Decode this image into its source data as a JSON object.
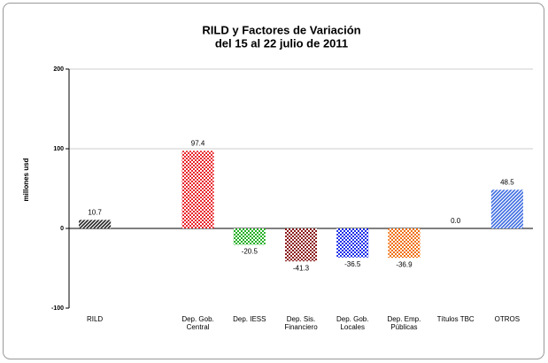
{
  "chart_data": {
    "type": "bar",
    "title": [
      "RILD y Factores de Variación",
      "del 15 al 22 julio de 2011"
    ],
    "y_label": "millones usd",
    "categories": [
      [
        "RILD"
      ],
      null,
      [
        "Dep. Gob.",
        "Central"
      ],
      [
        "Dep. IESS"
      ],
      [
        "Dep. Sis.",
        "Financiero"
      ],
      [
        "Dep. Gob.",
        "Locales"
      ],
      [
        "Dep. Emp.",
        "Públicas"
      ],
      [
        "Títulos TBC"
      ],
      [
        "OTROS"
      ]
    ],
    "values": [
      10.7,
      null,
      97.4,
      -20.5,
      -41.3,
      -36.5,
      -36.9,
      0.0,
      48.5
    ],
    "value_labels": [
      "10.7",
      null,
      "97.4",
      "-20.5",
      "-41.3",
      "-36.5",
      "-36.9",
      "0.0",
      "48.5"
    ],
    "colors": [
      "#222222",
      null,
      "#e8262b",
      "#22b022",
      "#8b1a1a",
      "#1a2ee8",
      "#f07010",
      "#22a022",
      "#3a6ae0"
    ],
    "ylim": [
      -100,
      200
    ],
    "yticks": [
      -100,
      0,
      100,
      200
    ],
    "grid": true
  }
}
